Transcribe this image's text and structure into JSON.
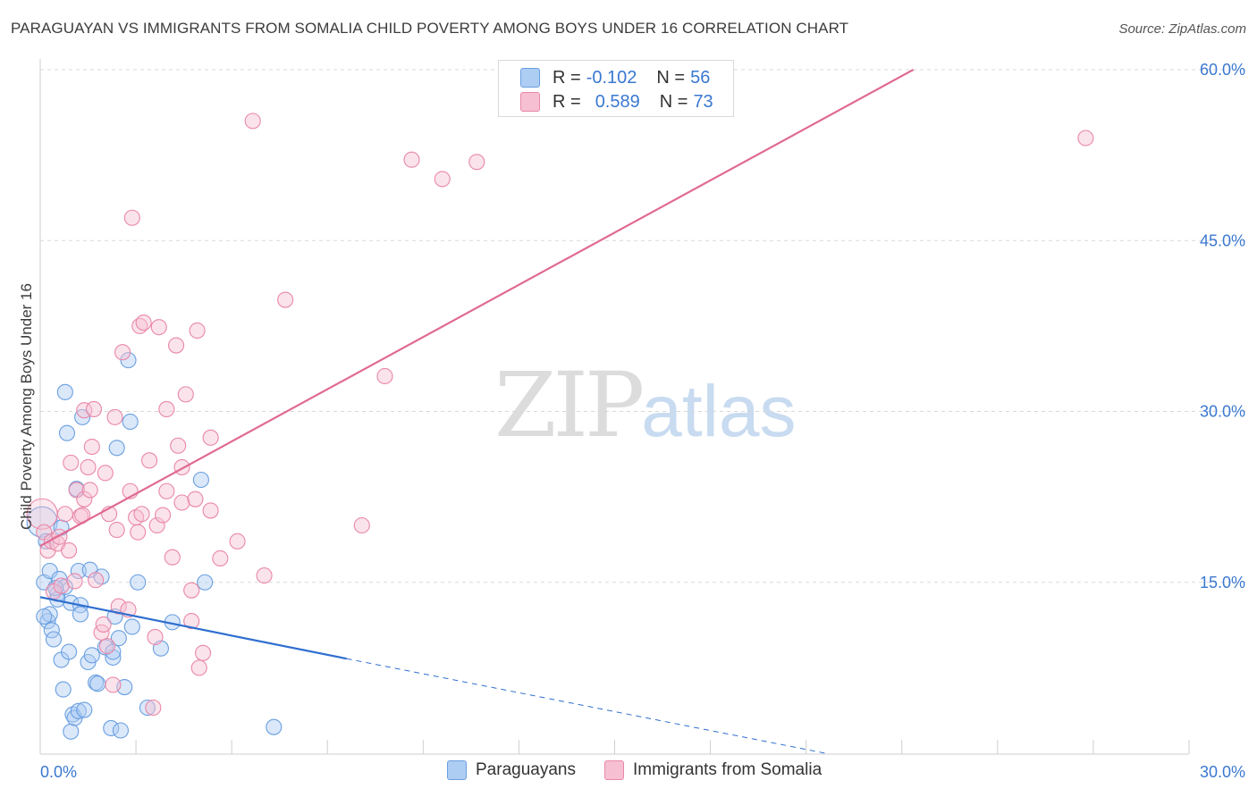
{
  "title": "PARAGUAYAN VS IMMIGRANTS FROM SOMALIA CHILD POVERTY AMONG BOYS UNDER 16 CORRELATION CHART",
  "source": "Source: ZipAtlas.com",
  "watermark": {
    "zip": "ZIP",
    "atlas": "atlas"
  },
  "colors": {
    "blue": "#6a9fe0",
    "blue_fill": "#aecdf3",
    "blue_line": "#2f6fcf",
    "pink": "#e987a8",
    "pink_fill": "#f6c0d2",
    "pink_line": "#e06a92",
    "axis_text": "#3a78d0",
    "grid": "#d8d8d8"
  },
  "legend": {
    "rows": [
      {
        "r_label": "R =",
        "r_value": "-0.102",
        "n_label": "N =",
        "n_value": "56"
      },
      {
        "r_label": "R =",
        "r_value": "0.589",
        "n_label": "N =",
        "n_value": "73"
      }
    ]
  },
  "bottom_legend": {
    "series1": "Paraguayans",
    "series2": "Immigrants from Somalia"
  },
  "chart_data": {
    "type": "scatter",
    "title": "PARAGUAYAN VS IMMIGRANTS FROM SOMALIA CHILD POVERTY AMONG BOYS UNDER 16 CORRELATION CHART",
    "xlabel": "",
    "ylabel": "Child Poverty Among Boys Under 16",
    "xlim": [
      0,
      30
    ],
    "ylim": [
      0,
      62
    ],
    "x_tick_labels": [
      "0.0%",
      "30.0%"
    ],
    "y_ticks": [
      15,
      30,
      45,
      60
    ],
    "y_tick_labels": [
      "15.0%",
      "30.0%",
      "45.0%",
      "60.0%"
    ],
    "series": [
      {
        "name": "Paraguayans",
        "color": "blue",
        "r": -0.102,
        "n": 56,
        "trend": {
          "x": [
            0,
            8
          ],
          "y": [
            13.7,
            8.3
          ],
          "dashed_to": [
            20.5,
            0
          ]
        },
        "points": [
          [
            0.05,
            20.3
          ],
          [
            0.1,
            15.0
          ],
          [
            0.15,
            18.6
          ],
          [
            0.2,
            11.6
          ],
          [
            0.25,
            16.0
          ],
          [
            0.25,
            12.2
          ],
          [
            0.3,
            10.8
          ],
          [
            0.35,
            10.0
          ],
          [
            0.45,
            14.0
          ],
          [
            0.45,
            13.5
          ],
          [
            0.5,
            15.3
          ],
          [
            0.55,
            19.8
          ],
          [
            0.55,
            8.2
          ],
          [
            0.6,
            5.6
          ],
          [
            0.65,
            14.6
          ],
          [
            0.65,
            31.7
          ],
          [
            0.7,
            28.1
          ],
          [
            0.75,
            8.9
          ],
          [
            0.8,
            13.2
          ],
          [
            0.8,
            1.9
          ],
          [
            0.85,
            3.4
          ],
          [
            0.9,
            3.1
          ],
          [
            0.95,
            23.2
          ],
          [
            1.0,
            3.7
          ],
          [
            1.0,
            16.0
          ],
          [
            1.05,
            13.0
          ],
          [
            1.05,
            12.2
          ],
          [
            1.1,
            29.5
          ],
          [
            1.15,
            3.8
          ],
          [
            1.25,
            8.0
          ],
          [
            1.3,
            16.1
          ],
          [
            1.35,
            8.6
          ],
          [
            1.45,
            6.2
          ],
          [
            1.5,
            6.1
          ],
          [
            1.7,
            9.3
          ],
          [
            1.85,
            2.2
          ],
          [
            1.9,
            8.4
          ],
          [
            1.9,
            8.9
          ],
          [
            1.95,
            12.0
          ],
          [
            2.0,
            26.8
          ],
          [
            2.05,
            10.1
          ],
          [
            2.1,
            2.0
          ],
          [
            2.2,
            5.8
          ],
          [
            2.3,
            34.5
          ],
          [
            2.35,
            29.1
          ],
          [
            2.4,
            11.1
          ],
          [
            2.55,
            15.0
          ],
          [
            2.8,
            4.0
          ],
          [
            3.15,
            9.2
          ],
          [
            3.45,
            11.5
          ],
          [
            4.2,
            24.0
          ],
          [
            4.3,
            15.0
          ],
          [
            6.1,
            2.3
          ],
          [
            0.1,
            12.0
          ],
          [
            0.4,
            14.5
          ],
          [
            1.6,
            15.5
          ]
        ]
      },
      {
        "name": "Immigrants from Somalia",
        "color": "pink",
        "r": 0.589,
        "n": 73,
        "trend": {
          "x": [
            0,
            22.8
          ],
          "y": [
            18.2,
            60.0
          ]
        },
        "points": [
          [
            0.05,
            21.0
          ],
          [
            0.1,
            19.4
          ],
          [
            0.2,
            17.8
          ],
          [
            0.3,
            18.6
          ],
          [
            0.35,
            14.2
          ],
          [
            0.45,
            18.4
          ],
          [
            0.5,
            19.0
          ],
          [
            0.55,
            14.7
          ],
          [
            0.65,
            21.0
          ],
          [
            0.75,
            17.8
          ],
          [
            0.8,
            25.5
          ],
          [
            0.9,
            15.1
          ],
          [
            0.95,
            23.1
          ],
          [
            1.05,
            20.8
          ],
          [
            1.1,
            20.9
          ],
          [
            1.15,
            22.3
          ],
          [
            1.15,
            30.1
          ],
          [
            1.25,
            25.1
          ],
          [
            1.3,
            23.1
          ],
          [
            1.35,
            26.9
          ],
          [
            1.4,
            30.2
          ],
          [
            1.45,
            15.2
          ],
          [
            1.6,
            10.6
          ],
          [
            1.65,
            11.3
          ],
          [
            1.7,
            24.6
          ],
          [
            1.75,
            9.4
          ],
          [
            1.8,
            21.0
          ],
          [
            1.9,
            6.0
          ],
          [
            1.95,
            29.5
          ],
          [
            2.0,
            19.6
          ],
          [
            2.05,
            12.9
          ],
          [
            2.15,
            35.2
          ],
          [
            2.3,
            12.6
          ],
          [
            2.35,
            23.0
          ],
          [
            2.4,
            47.0
          ],
          [
            2.5,
            20.7
          ],
          [
            2.55,
            19.4
          ],
          [
            2.6,
            37.5
          ],
          [
            2.65,
            21.0
          ],
          [
            2.7,
            37.8
          ],
          [
            2.85,
            25.7
          ],
          [
            2.95,
            4.0
          ],
          [
            3.0,
            10.2
          ],
          [
            3.05,
            20.0
          ],
          [
            3.1,
            37.4
          ],
          [
            3.2,
            20.9
          ],
          [
            3.3,
            30.2
          ],
          [
            3.3,
            23.0
          ],
          [
            3.45,
            17.2
          ],
          [
            3.55,
            35.8
          ],
          [
            3.6,
            27.0
          ],
          [
            3.7,
            25.1
          ],
          [
            3.7,
            22.0
          ],
          [
            3.8,
            31.5
          ],
          [
            3.95,
            11.6
          ],
          [
            3.95,
            14.3
          ],
          [
            4.05,
            22.3
          ],
          [
            4.1,
            37.1
          ],
          [
            4.15,
            7.5
          ],
          [
            4.25,
            8.8
          ],
          [
            4.45,
            27.7
          ],
          [
            4.45,
            21.3
          ],
          [
            4.7,
            17.1
          ],
          [
            5.15,
            18.6
          ],
          [
            5.55,
            55.5
          ],
          [
            5.85,
            15.6
          ],
          [
            6.4,
            39.8
          ],
          [
            8.4,
            20.0
          ],
          [
            9.0,
            33.1
          ],
          [
            9.7,
            52.1
          ],
          [
            10.5,
            50.4
          ],
          [
            11.4,
            51.9
          ],
          [
            27.3,
            54.0
          ]
        ]
      }
    ]
  },
  "point_labels": {
    "blue": "paraguayan-point",
    "pink": "somalia-point"
  }
}
